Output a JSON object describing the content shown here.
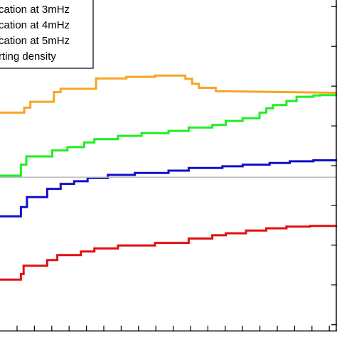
{
  "chart_data": {
    "type": "line",
    "xlim": [
      0,
      100
    ],
    "ylim": [
      0,
      100
    ],
    "grid": false,
    "legend_placement": "top-left",
    "legend_entries": [
      {
        "label": "cation at 3mHz",
        "color": "#F5A623"
      },
      {
        "label": "cation at 4mHz",
        "color": "#22EE22"
      },
      {
        "label": "cation at 5mHz",
        "color": "#1010C8"
      },
      {
        "label": "rting density",
        "color": "#BBBBBB"
      }
    ],
    "series": [
      {
        "color": "#F5A623",
        "points": [
          [
            0,
            66.0
          ],
          [
            7.2,
            66.0
          ],
          [
            7.2,
            67.5
          ],
          [
            9,
            67.5
          ],
          [
            9,
            69.3
          ],
          [
            16,
            69.3
          ],
          [
            16,
            72.2
          ],
          [
            18,
            72.2
          ],
          [
            18,
            73.2
          ],
          [
            28.5,
            73.2
          ],
          [
            28.5,
            76.3
          ],
          [
            37.5,
            76.3
          ],
          [
            37.5,
            76.8
          ],
          [
            46,
            76.8
          ],
          [
            46,
            77.2
          ],
          [
            55,
            77.2
          ],
          [
            55,
            76.2
          ],
          [
            57,
            76.2
          ],
          [
            57,
            74.7
          ],
          [
            59,
            74.7
          ],
          [
            59,
            73.5
          ],
          [
            64,
            73.5
          ],
          [
            64,
            72.5
          ],
          [
            100,
            72.0
          ]
        ]
      },
      {
        "color": "#22EE22",
        "points": [
          [
            0,
            47.0
          ],
          [
            6.2,
            47.0
          ],
          [
            6.2,
            50.3
          ],
          [
            7.8,
            50.3
          ],
          [
            7.8,
            52.8
          ],
          [
            15.5,
            52.8
          ],
          [
            15.5,
            54.6
          ],
          [
            20,
            54.6
          ],
          [
            20,
            55.6
          ],
          [
            25,
            55.6
          ],
          [
            25,
            57.0
          ],
          [
            28,
            57.0
          ],
          [
            28,
            58.0
          ],
          [
            35,
            58.0
          ],
          [
            35,
            59.0
          ],
          [
            42,
            59.0
          ],
          [
            42,
            59.8
          ],
          [
            50,
            59.8
          ],
          [
            50,
            60.5
          ],
          [
            56,
            60.5
          ],
          [
            56,
            61.5
          ],
          [
            63,
            61.5
          ],
          [
            63,
            62.3
          ],
          [
            67,
            62.3
          ],
          [
            67,
            63.5
          ],
          [
            72,
            63.5
          ],
          [
            72,
            64.3
          ],
          [
            77,
            64.3
          ],
          [
            77,
            66.0
          ],
          [
            79,
            66.0
          ],
          [
            79,
            67.3
          ],
          [
            81,
            67.3
          ],
          [
            81,
            68.3
          ],
          [
            85,
            68.3
          ],
          [
            85,
            69.5
          ],
          [
            88,
            69.5
          ],
          [
            88,
            70.8
          ],
          [
            93,
            70.8
          ],
          [
            93,
            71.2
          ],
          [
            95,
            71.2
          ],
          [
            95,
            71.3
          ],
          [
            100,
            71.3
          ]
        ]
      },
      {
        "color": "#1010C8",
        "points": [
          [
            0,
            34.7
          ],
          [
            6.2,
            34.7
          ],
          [
            6.2,
            37.5
          ],
          [
            8,
            37.5
          ],
          [
            8,
            40.5
          ],
          [
            14,
            40.5
          ],
          [
            14,
            43.0
          ],
          [
            18,
            43.0
          ],
          [
            18,
            44.5
          ],
          [
            22,
            44.5
          ],
          [
            22,
            45.3
          ],
          [
            26,
            45.3
          ],
          [
            26,
            46.3
          ],
          [
            32,
            46.3
          ],
          [
            32,
            47.2
          ],
          [
            40,
            47.2
          ],
          [
            40,
            47.8
          ],
          [
            50,
            47.8
          ],
          [
            50,
            48.5
          ],
          [
            56,
            48.5
          ],
          [
            56,
            49.3
          ],
          [
            66,
            49.3
          ],
          [
            66,
            49.8
          ],
          [
            72,
            49.8
          ],
          [
            72,
            50.3
          ],
          [
            80,
            50.3
          ],
          [
            80,
            50.8
          ],
          [
            86,
            50.8
          ],
          [
            86,
            51.3
          ],
          [
            93,
            51.3
          ],
          [
            93,
            51.6
          ],
          [
            100,
            51.6
          ]
        ]
      },
      {
        "color": "#E01010",
        "points": [
          [
            0,
            15.6
          ],
          [
            6.2,
            15.6
          ],
          [
            6.2,
            17.3
          ],
          [
            7,
            17.3
          ],
          [
            7,
            19.8
          ],
          [
            14,
            19.8
          ],
          [
            14,
            21.5
          ],
          [
            17,
            21.5
          ],
          [
            17,
            23.0
          ],
          [
            24,
            23.0
          ],
          [
            24,
            24.1
          ],
          [
            28,
            24.1
          ],
          [
            28,
            25.0
          ],
          [
            35,
            25.0
          ],
          [
            35,
            25.9
          ],
          [
            46,
            25.9
          ],
          [
            46,
            26.7
          ],
          [
            56,
            26.7
          ],
          [
            56,
            28.0
          ],
          [
            63,
            28.0
          ],
          [
            63,
            29.0
          ],
          [
            67,
            29.0
          ],
          [
            67,
            29.6
          ],
          [
            73,
            29.6
          ],
          [
            73,
            30.4
          ],
          [
            79,
            30.4
          ],
          [
            79,
            31.1
          ],
          [
            85,
            31.1
          ],
          [
            85,
            31.6
          ],
          [
            92,
            31.6
          ],
          [
            92,
            31.8
          ],
          [
            100,
            31.8
          ]
        ]
      },
      {
        "color": "#BBBBBB",
        "points": [
          [
            0,
            46.5
          ],
          [
            100,
            46.5
          ]
        ]
      }
    ]
  }
}
